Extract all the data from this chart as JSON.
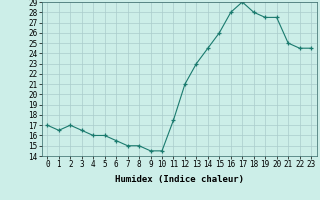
{
  "x": [
    0,
    1,
    2,
    3,
    4,
    5,
    6,
    7,
    8,
    9,
    10,
    11,
    12,
    13,
    14,
    15,
    16,
    17,
    18,
    19,
    20,
    21,
    22,
    23
  ],
  "y": [
    17,
    16.5,
    17,
    16.5,
    16,
    16,
    15.5,
    15,
    15,
    14.5,
    14.5,
    17.5,
    21,
    23,
    24.5,
    26,
    28,
    29,
    28,
    27.5,
    27.5,
    25,
    24.5,
    24.5
  ],
  "xlabel": "Humidex (Indice chaleur)",
  "ylim": [
    14,
    29
  ],
  "xlim": [
    -0.5,
    23.5
  ],
  "yticks": [
    14,
    15,
    16,
    17,
    18,
    19,
    20,
    21,
    22,
    23,
    24,
    25,
    26,
    27,
    28,
    29
  ],
  "xticks": [
    0,
    1,
    2,
    3,
    4,
    5,
    6,
    7,
    8,
    9,
    10,
    11,
    12,
    13,
    14,
    15,
    16,
    17,
    18,
    19,
    20,
    21,
    22,
    23
  ],
  "line_color": "#1a7a6e",
  "bg_color": "#cceee8",
  "grid_color": "#aacccc",
  "tick_fontsize": 5.5,
  "label_fontsize": 6.5
}
